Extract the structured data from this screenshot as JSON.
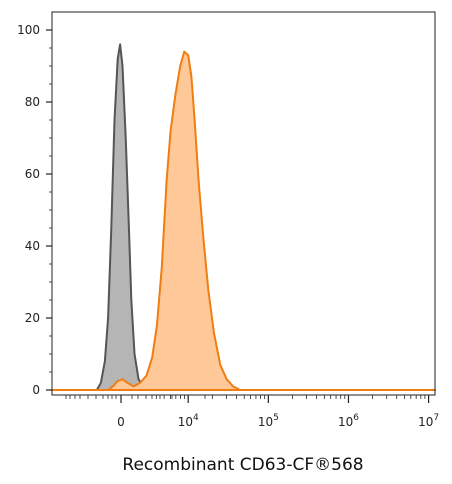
{
  "chart_data": {
    "type": "area",
    "title": "",
    "xlabel": "Recombinant CD63-CF®568",
    "ylabel": "",
    "x_scale": "biexponential",
    "ylim": [
      0,
      100
    ],
    "y_ticks": [
      0,
      20,
      40,
      60,
      80,
      100
    ],
    "x_tick_labels": [
      {
        "value": 0,
        "base": "0",
        "exp": ""
      },
      {
        "value": 10000,
        "base": "10",
        "exp": "4"
      },
      {
        "value": 100000,
        "base": "10",
        "exp": "5"
      },
      {
        "value": 1000000,
        "base": "10",
        "exp": "6"
      },
      {
        "value": 10000000,
        "base": "10",
        "exp": "7"
      }
    ],
    "x_range_decades": [
      2.3,
      7.08
    ],
    "grid": false,
    "series": [
      {
        "color": "#555555",
        "fill": "#b5b5b5",
        "points": [
          [
            2.3,
            0
          ],
          [
            2.86,
            0
          ],
          [
            2.91,
            2
          ],
          [
            2.96,
            8
          ],
          [
            3.0,
            20
          ],
          [
            3.04,
            45
          ],
          [
            3.08,
            75
          ],
          [
            3.12,
            92
          ],
          [
            3.15,
            96
          ],
          [
            3.18,
            90
          ],
          [
            3.22,
            70
          ],
          [
            3.26,
            45
          ],
          [
            3.29,
            25
          ],
          [
            3.33,
            10
          ],
          [
            3.38,
            3
          ],
          [
            3.44,
            1
          ],
          [
            3.55,
            0
          ],
          [
            7.08,
            0
          ]
        ]
      },
      {
        "color": "#f07d12",
        "fill": "#ffc899",
        "points": [
          [
            2.3,
            0
          ],
          [
            3.0,
            0
          ],
          [
            3.06,
            1
          ],
          [
            3.12,
            2.5
          ],
          [
            3.18,
            3
          ],
          [
            3.24,
            2
          ],
          [
            3.32,
            1
          ],
          [
            3.4,
            2
          ],
          [
            3.48,
            4
          ],
          [
            3.55,
            9
          ],
          [
            3.61,
            18
          ],
          [
            3.67,
            34
          ],
          [
            3.73,
            58
          ],
          [
            3.78,
            72
          ],
          [
            3.84,
            82
          ],
          [
            3.9,
            90
          ],
          [
            3.95,
            94
          ],
          [
            4.0,
            93
          ],
          [
            4.04,
            87
          ],
          [
            4.08,
            75
          ],
          [
            4.13,
            58
          ],
          [
            4.19,
            42
          ],
          [
            4.25,
            28
          ],
          [
            4.32,
            16
          ],
          [
            4.4,
            7
          ],
          [
            4.48,
            3
          ],
          [
            4.56,
            1
          ],
          [
            4.65,
            0
          ],
          [
            7.08,
            0
          ]
        ]
      }
    ]
  }
}
